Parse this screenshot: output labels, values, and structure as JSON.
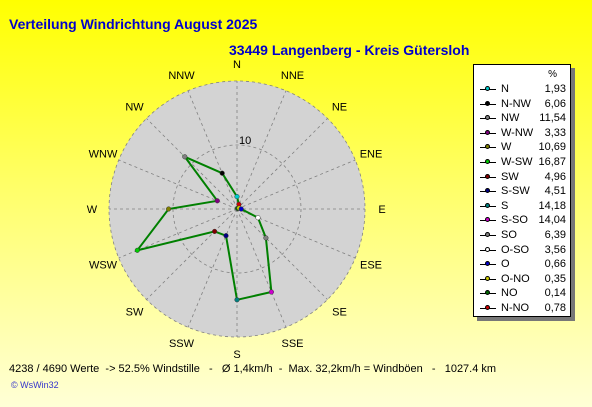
{
  "title": "Verteilung Windrichtung    August 2025",
  "subtitle": "33449 Langenberg - Kreis Gütersloh",
  "footer": "4238 / 4690 Werte  -> 52.5% Windstille   -   Ø 1,4km/h  -  Max. 32,2km/h = Windböen   -   1027.4 km",
  "credit": "© WsWin32",
  "legend_unit": "%",
  "colors": {
    "series": "#008000",
    "disc": "#d3d3d3",
    "grid": "#808080",
    "title": "#0000cc"
  },
  "chart_data": {
    "type": "radar",
    "ring_label": "10",
    "rmax": 20,
    "directions": [
      "N",
      "NNE",
      "NE",
      "ENE",
      "E",
      "ESE",
      "SE",
      "SSE",
      "S",
      "SSW",
      "SW",
      "WSW",
      "W",
      "WNW",
      "NW",
      "NNW"
    ],
    "series": [
      {
        "categories": [
          "N",
          "NNE",
          "NE",
          "ENE",
          "E",
          "ESE",
          "SE",
          "SSE",
          "S",
          "SSW",
          "SW",
          "WSW",
          "W",
          "WNW",
          "NW",
          "NNW"
        ],
        "values": [
          1.93,
          0.78,
          0.14,
          0.35,
          0.66,
          3.56,
          6.39,
          14.04,
          14.18,
          4.51,
          4.96,
          16.87,
          10.69,
          3.33,
          11.54,
          6.06
        ]
      }
    ],
    "legend": [
      {
        "name": "N",
        "value": "1,93",
        "color": "#00cccc"
      },
      {
        "name": "N-NW",
        "value": "6,06",
        "color": "#000000"
      },
      {
        "name": "NW",
        "value": "11,54",
        "color": "#808080"
      },
      {
        "name": "W-NW",
        "value": "3,33",
        "color": "#800080"
      },
      {
        "name": "W",
        "value": "10,69",
        "color": "#808000"
      },
      {
        "name": "W-SW",
        "value": "16,87",
        "color": "#00cc00"
      },
      {
        "name": "SW",
        "value": "4,96",
        "color": "#800000"
      },
      {
        "name": "S-SW",
        "value": "4,51",
        "color": "#000080"
      },
      {
        "name": "S",
        "value": "14,18",
        "color": "#008080"
      },
      {
        "name": "S-SO",
        "value": "14,04",
        "color": "#cc00cc"
      },
      {
        "name": "SO",
        "value": "6,39",
        "color": "#808080"
      },
      {
        "name": "O-SO",
        "value": "3,56",
        "color": "#ffffff"
      },
      {
        "name": "O",
        "value": "0,66",
        "color": "#0000cc"
      },
      {
        "name": "O-NO",
        "value": "0,35",
        "color": "#cccc00"
      },
      {
        "name": "NO",
        "value": "0,14",
        "color": "#006600"
      },
      {
        "name": "N-NO",
        "value": "0,78",
        "color": "#cc0000"
      }
    ]
  }
}
